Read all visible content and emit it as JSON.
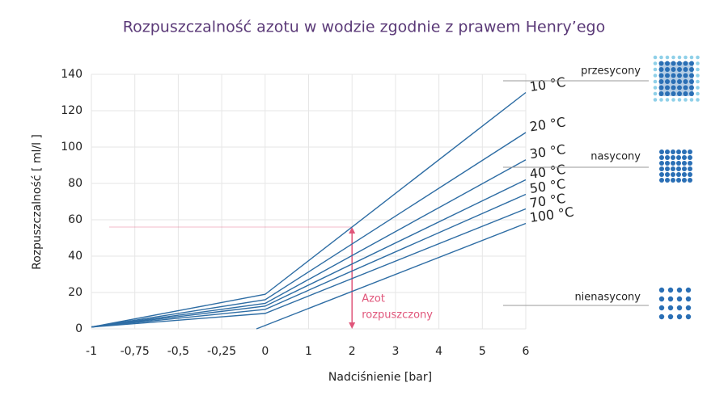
{
  "chart_data": {
    "type": "line",
    "title": "Rozpuszczalność azotu w wodzie zgodnie z prawem Henry’ego",
    "x_label": "Nadciśnienie [bar]",
    "y_label": "Rozpuszczalność [ ml/l ]",
    "xlim": [
      -1,
      6
    ],
    "ylim": [
      0,
      140
    ],
    "xticks": [
      -1,
      {
        "value": -0.75,
        "label": "-0,75"
      },
      {
        "value": -0.5,
        "label": "-0,5"
      },
      {
        "value": -0.25,
        "label": "-0,25"
      },
      0,
      1,
      2,
      3,
      4,
      5,
      6
    ],
    "yticks": [
      0,
      20,
      40,
      60,
      80,
      100,
      120,
      140
    ],
    "grid": true,
    "series": [
      {
        "name": "10 °C",
        "color": "#2e6da4",
        "x": [
          -1,
          0,
          6
        ],
        "values": [
          1,
          19,
          130
        ]
      },
      {
        "name": "20 °C",
        "color": "#2e6da4",
        "x": [
          -1,
          0,
          6
        ],
        "values": [
          1,
          16,
          108
        ]
      },
      {
        "name": "30 °C",
        "color": "#2e6da4",
        "x": [
          -1,
          0,
          6
        ],
        "values": [
          1,
          14,
          93
        ]
      },
      {
        "name": "40 °C",
        "color": "#2e6da4",
        "x": [
          -1,
          0,
          6
        ],
        "values": [
          1,
          12.5,
          82
        ]
      },
      {
        "name": "50 °C",
        "color": "#2e6da4",
        "x": [
          -1,
          0,
          6
        ],
        "values": [
          1,
          10.7,
          74
        ]
      },
      {
        "name": "70 °C",
        "color": "#2e6da4",
        "x": [
          -1,
          0,
          6
        ],
        "values": [
          1,
          8.5,
          66
        ]
      },
      {
        "name": "100 °C",
        "color": "#2e6da4",
        "x": [
          -0.05,
          6
        ],
        "values": [
          0,
          58
        ]
      }
    ],
    "annotation": {
      "lines": [
        "Azot",
        "rozpuszczony"
      ],
      "x": 2,
      "y": 56,
      "color": "#e0557a"
    },
    "states": [
      "przesycony",
      "nasycony",
      "nienasycony"
    ]
  }
}
